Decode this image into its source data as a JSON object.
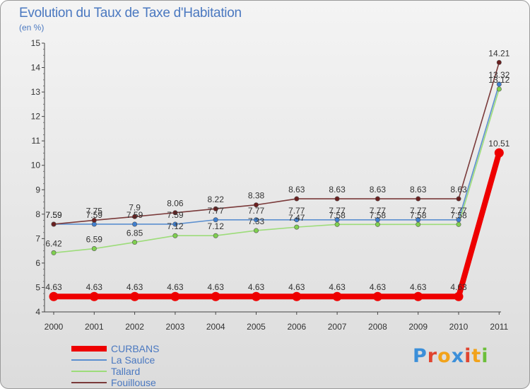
{
  "title": "Evolution du Taux de Taxe d'Habitation",
  "unit": "(en %)",
  "logo": {
    "text": "Proxiti",
    "letters": [
      {
        "ch": "P",
        "color": "#3b8fd9"
      },
      {
        "ch": "r",
        "color": "#e0442f"
      },
      {
        "ch": "o",
        "color": "#f2a31b"
      },
      {
        "ch": "x",
        "color": "#3b8fd9"
      },
      {
        "ch": "i",
        "color": "#e0442f"
      },
      {
        "ch": "t",
        "color": "#f2a31b"
      },
      {
        "ch": "i",
        "color": "#6cbf3a"
      }
    ]
  },
  "chart_data": {
    "type": "line",
    "x": [
      "2000",
      "2001",
      "2002",
      "2003",
      "2004",
      "2005",
      "2006",
      "2007",
      "2008",
      "2009",
      "2010",
      "2011"
    ],
    "ylim": [
      4,
      15
    ],
    "yticks": [
      "4",
      "5",
      "6",
      "7",
      "8",
      "9",
      "10",
      "11",
      "12",
      "13",
      "14",
      "15"
    ],
    "grid": "none",
    "legend_position": "bottom-left",
    "series": [
      {
        "name": "La Saulce",
        "color": "#5b8fcf",
        "point_color": "#3f7fd0",
        "values": [
          7.59,
          7.59,
          7.59,
          7.59,
          7.77,
          7.77,
          7.77,
          7.77,
          7.77,
          7.77,
          7.77,
          13.32
        ],
        "labels": [
          "7.59",
          "7.59",
          "7.59",
          "7.59",
          "7.77",
          "7.77",
          "7.77",
          "7.77",
          "7.77",
          "7.77",
          "7.77",
          "13.32"
        ]
      },
      {
        "name": "Tallard",
        "color": "#9ddc7a",
        "point_color": "#7fd04f",
        "values": [
          6.42,
          6.59,
          6.85,
          7.12,
          7.12,
          7.33,
          7.47,
          7.58,
          7.58,
          7.58,
          7.58,
          13.12
        ],
        "labels": [
          "6.42",
          "6.59",
          "6.85",
          "7.12",
          "7.12",
          "7.33",
          "7.47",
          "7.58",
          "7.58",
          "7.58",
          "7.58",
          "13.12"
        ]
      },
      {
        "name": "Fouillouse",
        "color": "#7a3a3a",
        "point_color": "#6a1f1f",
        "values": [
          7.59,
          7.75,
          7.9,
          8.06,
          8.22,
          8.38,
          8.63,
          8.63,
          8.63,
          8.63,
          8.63,
          14.21
        ],
        "labels": [
          "7.59",
          "7.75",
          "7.9",
          "8.06",
          "8.22",
          "8.38",
          "8.63",
          "8.63",
          "8.63",
          "8.63",
          "8.63",
          "14.21"
        ]
      },
      {
        "name": "CURBANS",
        "color": "#ee0000",
        "point_color": "#ee0000",
        "values": [
          4.63,
          4.63,
          4.63,
          4.63,
          4.63,
          4.63,
          4.63,
          4.63,
          4.63,
          4.63,
          4.63,
          10.51
        ],
        "labels": [
          "4.63",
          "4.63",
          "4.63",
          "4.63",
          "4.63",
          "4.63",
          "4.63",
          "4.63",
          "4.63",
          "4.63",
          "4.63",
          "10.51"
        ]
      }
    ],
    "legend_order": [
      "CURBANS",
      "La Saulce",
      "Tallard",
      "Fouillouse"
    ]
  }
}
